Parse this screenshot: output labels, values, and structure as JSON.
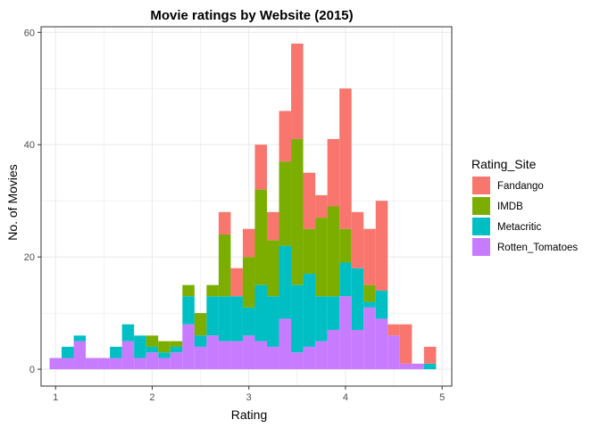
{
  "chart_data": {
    "type": "bar",
    "stacked": true,
    "histogram": true,
    "title": "Movie ratings by Website (2015)",
    "xlabel": "Rating",
    "ylabel": "No. of Movies",
    "xlim": [
      0.85,
      5.1
    ],
    "ylim": [
      -3,
      61
    ],
    "xticks": [
      1,
      2,
      3,
      4,
      5
    ],
    "yticks": [
      0,
      20,
      40,
      60
    ],
    "grid": true,
    "bin_width": 0.125,
    "x": [
      1.0,
      1.125,
      1.25,
      1.375,
      1.5,
      1.625,
      1.75,
      1.875,
      2.0,
      2.125,
      2.25,
      2.375,
      2.5,
      2.625,
      2.75,
      2.875,
      3.0,
      3.125,
      3.25,
      3.375,
      3.5,
      3.625,
      3.75,
      3.875,
      4.0,
      4.125,
      4.25,
      4.375,
      4.5,
      4.625,
      4.75,
      4.875
    ],
    "series": [
      {
        "name": "Rotten_Tomatoes",
        "color": "#C77CFF",
        "values": [
          2,
          2,
          5,
          2,
          2,
          2,
          5,
          2,
          3,
          2,
          3,
          8,
          4,
          6,
          5,
          5,
          6,
          5,
          4,
          9,
          3,
          4,
          5,
          7,
          13,
          7,
          11,
          9,
          6,
          1,
          1,
          0
        ]
      },
      {
        "name": "Metacritic",
        "color": "#00BFC4",
        "values": [
          0,
          2,
          1,
          0,
          0,
          2,
          3,
          4,
          1,
          1,
          1,
          5,
          2,
          7,
          8,
          8,
          5,
          10,
          9,
          13,
          12,
          13,
          8,
          6,
          6,
          11,
          1,
          5,
          0,
          0,
          0,
          1
        ]
      },
      {
        "name": "IMDB",
        "color": "#7CAE00",
        "values": [
          0,
          0,
          0,
          0,
          0,
          0,
          0,
          0,
          2,
          2,
          1,
          2,
          4,
          2,
          11,
          0,
          9,
          17,
          10,
          15,
          26,
          8,
          14,
          16,
          6,
          0,
          3,
          0,
          0,
          0,
          0,
          0
        ]
      },
      {
        "name": "Fandango",
        "color": "#F8766D",
        "values": [
          0,
          0,
          0,
          0,
          0,
          0,
          0,
          0,
          0,
          0,
          0,
          0,
          0,
          0,
          4,
          5,
          5,
          8,
          5,
          9,
          17,
          10,
          4,
          12,
          25,
          10,
          10,
          16,
          2,
          7,
          0,
          3
        ]
      }
    ],
    "legend": {
      "title": "Rating_Site",
      "placement": "right",
      "entries": [
        "Fandango",
        "IMDB",
        "Metacritic",
        "Rotten_Tomatoes"
      ]
    }
  }
}
